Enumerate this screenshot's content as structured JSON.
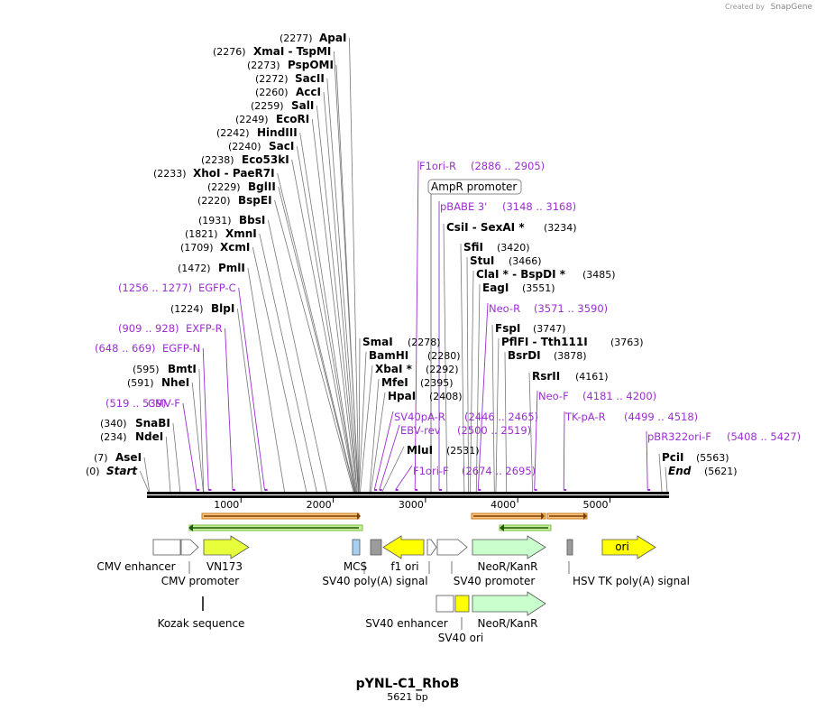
{
  "credit": {
    "label": "Created by",
    "brand": "SnapGene"
  },
  "title": "pYNL-C1_RhoB",
  "subtitle": "5621 bp",
  "total_length": 5621,
  "boxed_label": "AmpR promoter",
  "xticks": [
    1000,
    2000,
    3000,
    4000,
    5000
  ],
  "enzymes": [
    {
      "position": 2277,
      "position_label": "(2277)",
      "name": "ApaI"
    },
    {
      "position": 2276,
      "position_label": "(2276)",
      "name": "XmaI  - TspMI"
    },
    {
      "position": 2273,
      "position_label": "(2273)",
      "name": "PspOMI"
    },
    {
      "position": 2272,
      "position_label": "(2272)",
      "name": "SacII"
    },
    {
      "position": 2260,
      "position_label": "(2260)",
      "name": "AccI"
    },
    {
      "position": 2259,
      "position_label": "(2259)",
      "name": "SalI"
    },
    {
      "position": 2249,
      "position_label": "(2249)",
      "name": "EcoRI"
    },
    {
      "position": 2242,
      "position_label": "(2242)",
      "name": "HindIII"
    },
    {
      "position": 2240,
      "position_label": "(2240)",
      "name": "SacI"
    },
    {
      "position": 2238,
      "position_label": "(2238)",
      "name": "Eco53kI"
    },
    {
      "position": 2233,
      "position_label": "(2233)",
      "name": "XhoI  - PaeR7I"
    },
    {
      "position": 2229,
      "position_label": "(2229)",
      "name": "BglII"
    },
    {
      "position": 2220,
      "position_label": "(2220)",
      "name": "BspEI"
    },
    {
      "position": 1931,
      "position_label": "(1931)",
      "name": "BbsI"
    },
    {
      "position": 1821,
      "position_label": "(1821)",
      "name": "XmnI"
    },
    {
      "position": 1709,
      "position_label": "(1709)",
      "name": "XcmI"
    },
    {
      "position": 1472,
      "position_label": "(1472)",
      "name": "PmlI"
    },
    {
      "position": 1224,
      "position_label": "(1224)",
      "name": "BlpI"
    },
    {
      "position": 595,
      "position_label": "(595)",
      "name": "BmtI"
    },
    {
      "position": 591,
      "position_label": "(591)",
      "name": "NheI"
    },
    {
      "position": 340,
      "position_label": "(340)",
      "name": "SnaBI"
    },
    {
      "position": 234,
      "position_label": "(234)",
      "name": "NdeI"
    },
    {
      "position": 7,
      "position_label": "(7)",
      "name": "AseI"
    },
    {
      "position": 0,
      "position_label": "(0)",
      "name": "Start"
    },
    {
      "position": 2278,
      "position_label": "(2278)",
      "name": "SmaI"
    },
    {
      "position": 2280,
      "position_label": "(2280)",
      "name": "BamHI"
    },
    {
      "position": 2292,
      "position_label": "(2292)",
      "name": "XbaI *"
    },
    {
      "position": 2395,
      "position_label": "(2395)",
      "name": "MfeI"
    },
    {
      "position": 2408,
      "position_label": "(2408)",
      "name": "HpaI"
    },
    {
      "position": 2531,
      "position_label": "(2531)",
      "name": "MluI"
    },
    {
      "position": 3234,
      "position_label": "(3234)",
      "name": "CsiI  - SexAI *"
    },
    {
      "position": 3420,
      "position_label": "(3420)",
      "name": "SfiI"
    },
    {
      "position": 3466,
      "position_label": "(3466)",
      "name": "StuI"
    },
    {
      "position": 3485,
      "position_label": "(3485)",
      "name": "ClaI *  - BspDI *"
    },
    {
      "position": 3551,
      "position_label": "(3551)",
      "name": "EagI"
    },
    {
      "position": 3747,
      "position_label": "(3747)",
      "name": "FspI"
    },
    {
      "position": 3763,
      "position_label": "(3763)",
      "name": "PflFI  - Tth111I"
    },
    {
      "position": 3878,
      "position_label": "(3878)",
      "name": "BsrDI"
    },
    {
      "position": 4161,
      "position_label": "(4161)",
      "name": "RsrII"
    },
    {
      "position": 5563,
      "position_label": "(5563)",
      "name": "PciI"
    },
    {
      "position": 5621,
      "position_label": "(5621)",
      "name": "End"
    }
  ],
  "primers": [
    {
      "start": 1256,
      "end": 1277,
      "range_label": "(1256 .. 1277)",
      "name": "EGFP-C"
    },
    {
      "start": 909,
      "end": 928,
      "range_label": "(909 .. 928)",
      "name": "EXFP-R"
    },
    {
      "start": 648,
      "end": 669,
      "range_label": "(648 .. 669)",
      "name": "EGFP-N"
    },
    {
      "start": 519,
      "end": 539,
      "range_label": "(519 .. 539)",
      "name": "CMV-F"
    },
    {
      "start": 2886,
      "end": 2905,
      "range_label": "(2886 .. 2905)",
      "name": "F1ori-R"
    },
    {
      "start": 3148,
      "end": 3168,
      "range_label": "(3148 .. 3168)",
      "name": "pBABE 3'"
    },
    {
      "start": 3571,
      "end": 3590,
      "range_label": "(3571 .. 3590)",
      "name": "Neo-R"
    },
    {
      "start": 2446,
      "end": 2465,
      "range_label": "(2446 .. 2465)",
      "name": "SV40pA-R"
    },
    {
      "start": 2500,
      "end": 2519,
      "range_label": "(2500 .. 2519)",
      "name": "EBV-rev"
    },
    {
      "start": 2674,
      "end": 2695,
      "range_label": "(2674 .. 2695)",
      "name": "F1ori-F"
    },
    {
      "start": 4181,
      "end": 4200,
      "range_label": "(4181 .. 4200)",
      "name": "Neo-F"
    },
    {
      "start": 4499,
      "end": 4518,
      "range_label": "(4499 .. 4518)",
      "name": "TK-pA-R"
    },
    {
      "start": 5408,
      "end": 5427,
      "range_label": "(5408 .. 5427)",
      "name": "pBR322ori-F"
    }
  ],
  "features": [
    "CMV enhancer",
    "VN173",
    "CMV promoter",
    "Kozak sequence",
    "MCS",
    "f1 ori",
    "SV40 poly(A) signal",
    "NeoR/KanR",
    "SV40 promoter",
    "HSV TK poly(A) signal",
    "SV40 enhancer",
    "NeoR/KanR",
    "SV40 ori",
    "ori"
  ]
}
